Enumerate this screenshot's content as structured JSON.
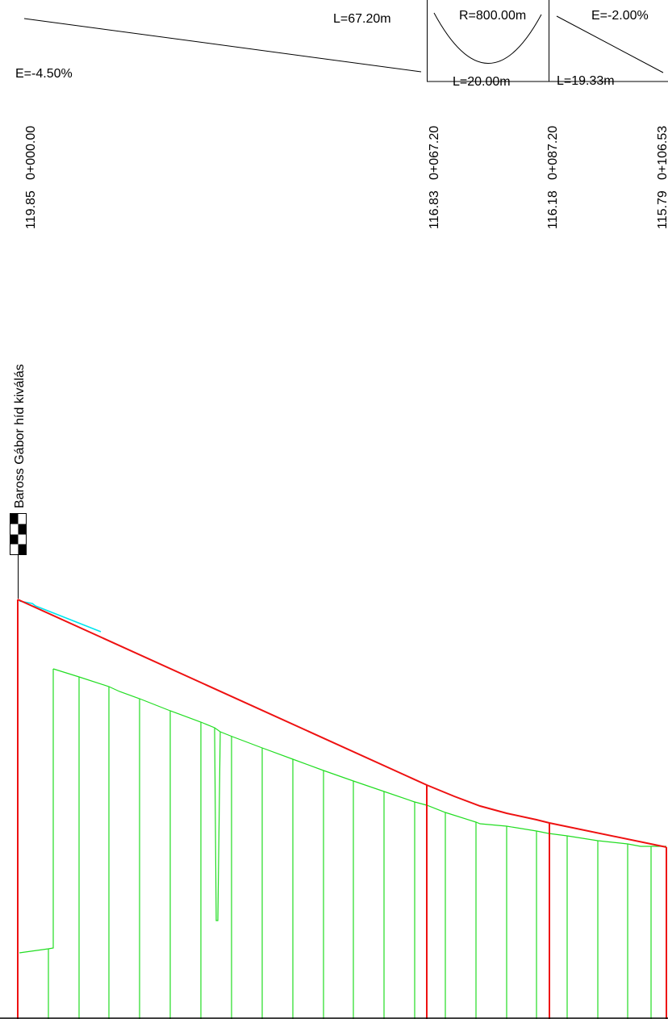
{
  "colors": {
    "design_line": "#ee1111",
    "terrain_line": "#22dd22",
    "existing_fragment": "#00e5ee",
    "ink": "#000000"
  },
  "grade_band": {
    "segments": [
      {
        "grade": "E=-4.50%",
        "length": "L=67.20m"
      },
      {
        "radius": "R=800.00m",
        "length": "L=20.00m"
      },
      {
        "grade": "E=-2.00%",
        "length": "L=19.33m"
      }
    ]
  },
  "stations": [
    {
      "elevation": "119.85",
      "chainage": "0+000.00"
    },
    {
      "elevation": "116.83",
      "chainage": "0+067.20"
    },
    {
      "elevation": "116.18",
      "chainage": "0+087.20"
    },
    {
      "elevation": "115.79",
      "chainage": "0+106.53"
    }
  ],
  "marker": {
    "label": "Baross Gábor híd kiválás",
    "icon": "checkered-survey-marker-icon"
  }
}
